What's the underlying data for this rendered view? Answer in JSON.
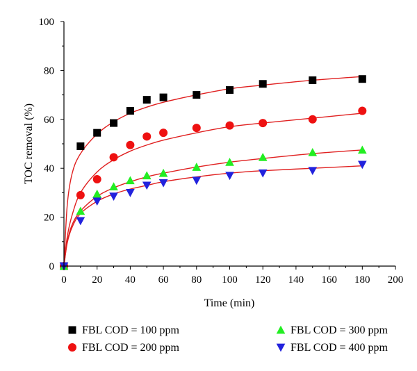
{
  "chart_data": {
    "type": "scatter",
    "title": "",
    "xlabel": "Time (min)",
    "ylabel": "TOC removal (%)",
    "xlim": [
      0,
      200
    ],
    "ylim": [
      0,
      100
    ],
    "xticks": [
      0,
      20,
      40,
      60,
      80,
      100,
      120,
      140,
      160,
      180,
      200
    ],
    "yticks": [
      0,
      20,
      40,
      60,
      80,
      100
    ],
    "grid": false,
    "legend_position": "bottom",
    "fit_line_color": "#e02020",
    "series": [
      {
        "name": "FBL COD = 100 ppm",
        "marker": "square",
        "color": "#000000",
        "x": [
          0,
          10,
          20,
          30,
          40,
          50,
          60,
          80,
          100,
          120,
          150,
          180
        ],
        "y": [
          0,
          49,
          54.5,
          58.5,
          63.5,
          68,
          69,
          70,
          72,
          74.5,
          76,
          76.5
        ],
        "fit": {
          "x": [
            0,
            2,
            5,
            10,
            20,
            30,
            40,
            50,
            60,
            80,
            100,
            120,
            150,
            180
          ],
          "y": [
            0,
            25,
            38,
            46,
            54,
            59,
            62.5,
            65,
            67,
            70,
            72.5,
            74,
            76,
            77.5
          ]
        }
      },
      {
        "name": "FBL COD = 200 ppm",
        "marker": "circle",
        "color": "#ee1111",
        "x": [
          0,
          10,
          20,
          30,
          40,
          50,
          60,
          80,
          100,
          120,
          150,
          180
        ],
        "y": [
          0,
          29,
          35.5,
          44.5,
          49.5,
          53,
          54.5,
          56.5,
          57.5,
          58.5,
          60,
          63.5
        ],
        "fit": {
          "x": [
            0,
            2,
            5,
            10,
            20,
            30,
            40,
            50,
            60,
            80,
            100,
            120,
            150,
            180
          ],
          "y": [
            0,
            12,
            21,
            30,
            38.5,
            43.5,
            47,
            49.5,
            51.5,
            54.5,
            57,
            58.5,
            60.5,
            62.5
          ]
        }
      },
      {
        "name": "FBL COD = 300 ppm",
        "marker": "triangle-up",
        "color": "#22ee22",
        "x": [
          0,
          10,
          20,
          30,
          40,
          50,
          60,
          80,
          100,
          120,
          150,
          180
        ],
        "y": [
          0,
          22.5,
          29.5,
          32.5,
          35,
          37,
          38,
          40.5,
          42.5,
          44.5,
          46.5,
          47.5
        ],
        "fit": {
          "x": [
            0,
            2,
            5,
            10,
            20,
            30,
            40,
            50,
            60,
            80,
            100,
            120,
            150,
            180
          ],
          "y": [
            0,
            10,
            17,
            22.5,
            28.5,
            32,
            34.5,
            36.5,
            38,
            40.5,
            42.5,
            44,
            46,
            47.5
          ]
        }
      },
      {
        "name": "FBL COD = 400 ppm",
        "marker": "triangle-down",
        "color": "#2222dd",
        "x": [
          0,
          10,
          20,
          30,
          40,
          50,
          60,
          80,
          100,
          120,
          150,
          180
        ],
        "y": [
          0,
          18.5,
          26.5,
          28.5,
          30,
          33,
          34,
          35,
          37,
          38,
          39,
          41.5
        ],
        "fit": {
          "x": [
            0,
            2,
            5,
            10,
            20,
            30,
            40,
            50,
            60,
            80,
            100,
            120,
            150,
            180
          ],
          "y": [
            0,
            9.5,
            16,
            21.5,
            26.5,
            29.5,
            31.5,
            33,
            34.5,
            36.5,
            38,
            39,
            40,
            41
          ]
        }
      }
    ]
  }
}
